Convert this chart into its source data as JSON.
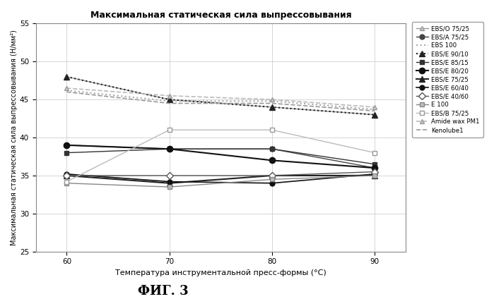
{
  "title": "Максимальная статическая сила выпрессовывания",
  "xlabel": "Температура инструментальной пресс-формы (°С)",
  "ylabel": "Максимальная статическая сила выпрессовывания (Н/мм²)",
  "fig_label": "ФИГ. 3",
  "x": [
    60,
    70,
    80,
    90
  ],
  "ylim": [
    25,
    55
  ],
  "yticks": [
    25,
    30,
    35,
    40,
    45,
    50,
    55
  ],
  "series": [
    {
      "label": "EBS/O 75/25",
      "y": [
        48.0,
        45.0,
        44.0,
        43.0
      ],
      "color": "#999999",
      "linestyle": "solid",
      "marker": "^",
      "markersize": 5,
      "markerfacecolor": "#cccccc",
      "markeredgecolor": "#999999",
      "linewidth": 1.0
    },
    {
      "label": "EBS/A 75/25",
      "y": [
        39.0,
        38.5,
        38.5,
        36.0
      ],
      "color": "#444444",
      "linestyle": "solid",
      "marker": "o",
      "markersize": 5,
      "markerfacecolor": "#444444",
      "markeredgecolor": "#444444",
      "linewidth": 1.0
    },
    {
      "label": "EBS 100",
      "y": [
        46.2,
        44.8,
        44.8,
        43.7
      ],
      "color": "#aaaaaa",
      "linestyle": "dotted",
      "marker": "None",
      "markersize": 0,
      "markerfacecolor": "#aaaaaa",
      "markeredgecolor": "#aaaaaa",
      "linewidth": 1.5
    },
    {
      "label": "EBS/E 90/10",
      "y": [
        48.0,
        45.0,
        44.0,
        43.0
      ],
      "color": "#222222",
      "linestyle": "dotted",
      "marker": "^",
      "markersize": 6,
      "markerfacecolor": "#222222",
      "markeredgecolor": "#222222",
      "linewidth": 1.5
    },
    {
      "label": "EBS/E 85/15",
      "y": [
        38.0,
        38.5,
        38.5,
        36.5
      ],
      "color": "#333333",
      "linestyle": "solid",
      "marker": "s",
      "markersize": 5,
      "markerfacecolor": "#333333",
      "markeredgecolor": "#333333",
      "linewidth": 1.0
    },
    {
      "label": "EBS/E 80/20",
      "y": [
        39.0,
        38.5,
        37.0,
        36.0
      ],
      "color": "#111111",
      "linestyle": "solid",
      "marker": "o",
      "markersize": 6,
      "markerfacecolor": "#111111",
      "markeredgecolor": "#111111",
      "linewidth": 1.5
    },
    {
      "label": "EBS/E 75/25",
      "y": [
        35.0,
        34.0,
        35.0,
        35.0
      ],
      "color": "#222222",
      "linestyle": "solid",
      "marker": "^",
      "markersize": 6,
      "markerfacecolor": "#222222",
      "markeredgecolor": "#222222",
      "linewidth": 1.5
    },
    {
      "label": "EBS/E 60/40",
      "y": [
        35.2,
        34.2,
        34.0,
        35.2
      ],
      "color": "#111111",
      "linestyle": "solid",
      "marker": "o",
      "markersize": 5,
      "markerfacecolor": "#111111",
      "markeredgecolor": "#111111",
      "linewidth": 1.2
    },
    {
      "label": "EBS/E 40/60",
      "y": [
        35.0,
        35.0,
        35.0,
        35.5
      ],
      "color": "#555555",
      "linestyle": "solid",
      "marker": "D",
      "markersize": 5,
      "markerfacecolor": "white",
      "markeredgecolor": "#555555",
      "linewidth": 1.0
    },
    {
      "label": "E 100",
      "y": [
        34.0,
        33.5,
        34.5,
        35.0
      ],
      "color": "#888888",
      "linestyle": "solid",
      "marker": "s",
      "markersize": 5,
      "markerfacecolor": "#bbbbbb",
      "markeredgecolor": "#888888",
      "linewidth": 1.0
    },
    {
      "label": "EBS/B 75/25",
      "y": [
        34.2,
        41.0,
        41.0,
        38.0
      ],
      "color": "#bbbbbb",
      "linestyle": "solid",
      "marker": "s",
      "markersize": 5,
      "markerfacecolor": "white",
      "markeredgecolor": "#999999",
      "linewidth": 1.0
    },
    {
      "label": "Amide wax PM1",
      "y": [
        46.5,
        45.5,
        45.0,
        44.0
      ],
      "color": "#bbbbbb",
      "linestyle": "--",
      "marker": "^",
      "markersize": 5,
      "markerfacecolor": "#cccccc",
      "markeredgecolor": "#999999",
      "linewidth": 1.2
    },
    {
      "label": "Kenolube1",
      "y": [
        46.0,
        44.5,
        44.5,
        43.5
      ],
      "color": "#999999",
      "linestyle": "--",
      "marker": "None",
      "markersize": 0,
      "markerfacecolor": "#999999",
      "markeredgecolor": "#999999",
      "linewidth": 1.2
    }
  ]
}
